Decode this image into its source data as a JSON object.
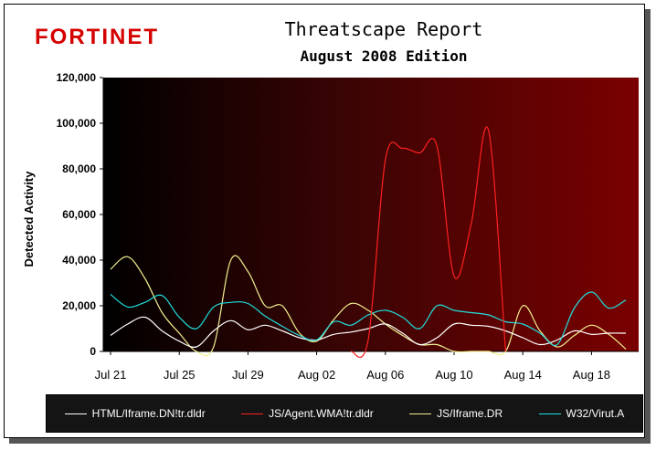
{
  "header": {
    "brand": "FORTINET",
    "title": "Threatscape Report",
    "subtitle": "August 2008 Edition"
  },
  "chart_data": {
    "type": "line",
    "title": "Threatscape Report",
    "subtitle": "August 2008 Edition",
    "ylabel": "Detected Activity",
    "xlabel": "",
    "ylim": [
      0,
      120000
    ],
    "yticks": [
      0,
      20000,
      40000,
      60000,
      80000,
      100000,
      120000
    ],
    "ytick_labels": [
      "0",
      "20,000",
      "40,000",
      "60,000",
      "80,000",
      "100,000",
      "120,000"
    ],
    "xlim": [
      0,
      30
    ],
    "xticks": [
      0,
      4,
      8,
      12,
      16,
      20,
      24,
      28
    ],
    "xtick_labels": [
      "Jul 21",
      "Jul 25",
      "Jul 29",
      "Aug 02",
      "Aug 06",
      "Aug 10",
      "Aug 14",
      "Aug 18"
    ],
    "grid": false,
    "legend_position": "bottom",
    "series": [
      {
        "name": "HTML/Iframe.DN!tr.dldr",
        "color": "#ffffff",
        "x": [
          0,
          1,
          2,
          3,
          4,
          5,
          6,
          7,
          8,
          9,
          10,
          11,
          12,
          13,
          14,
          15,
          16,
          17,
          18,
          19,
          20,
          21,
          22,
          23,
          24,
          25,
          26,
          27,
          28,
          29,
          30
        ],
        "values": [
          7000,
          12000,
          15000,
          9000,
          4500,
          2000,
          9000,
          13500,
          9500,
          11500,
          9000,
          6000,
          5000,
          7500,
          8500,
          10000,
          12000,
          8000,
          3000,
          6000,
          12000,
          11500,
          11000,
          9000,
          6000,
          3000,
          5000,
          9000,
          7500,
          8000,
          8000
        ]
      },
      {
        "name": "JS/Agent.WMA!tr.dldr",
        "color": "#ff2020",
        "x": [
          14,
          15,
          16,
          17,
          18,
          19,
          20,
          21,
          22,
          23
        ],
        "values": [
          0,
          5000,
          84000,
          89000,
          87000,
          90000,
          33000,
          56000,
          97000,
          0
        ]
      },
      {
        "name": "JS/Iframe.DR",
        "color": "#f0f090",
        "x": [
          0,
          1,
          2,
          3,
          4,
          5,
          6,
          7,
          8,
          9,
          10,
          11,
          12,
          13,
          14,
          15,
          16,
          17,
          18,
          19,
          20,
          21,
          22,
          23,
          24,
          25,
          26,
          27,
          28,
          29,
          30
        ],
        "values": [
          36000,
          41500,
          32000,
          17000,
          8000,
          0,
          2000,
          40000,
          35000,
          20000,
          20000,
          8000,
          4500,
          14000,
          21000,
          18000,
          12000,
          7000,
          3000,
          3000,
          0,
          0,
          0,
          0,
          20000,
          9000,
          2000,
          7000,
          11500,
          7500,
          1000
        ]
      },
      {
        "name": "W32/Virut.A",
        "color": "#20e0e0",
        "x": [
          0,
          1,
          2,
          3,
          4,
          5,
          6,
          7,
          8,
          9,
          10,
          11,
          12,
          13,
          14,
          15,
          16,
          17,
          18,
          19,
          20,
          21,
          22,
          23,
          24,
          25,
          26,
          27,
          28,
          29,
          30
        ],
        "values": [
          25000,
          19500,
          21500,
          24500,
          15000,
          10000,
          19500,
          21500,
          21000,
          15500,
          11000,
          7000,
          5000,
          13000,
          11500,
          16000,
          18000,
          15000,
          10000,
          20000,
          18000,
          17000,
          16000,
          13000,
          12000,
          8000,
          3000,
          19000,
          26000,
          19000,
          22500
        ]
      }
    ]
  }
}
